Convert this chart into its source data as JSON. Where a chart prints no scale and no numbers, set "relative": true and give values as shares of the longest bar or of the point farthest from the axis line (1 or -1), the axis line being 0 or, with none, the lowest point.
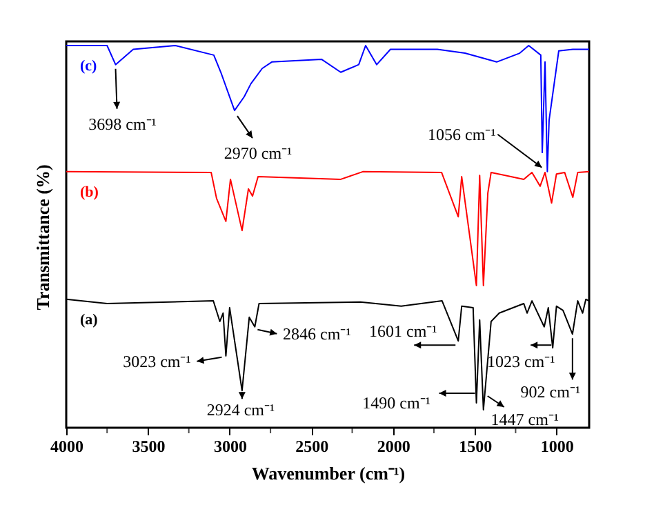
{
  "chart_data": {
    "type": "line",
    "relative": true,
    "xlabel": "Wavenumber (cm⁻¹)",
    "ylabel": "Transmittance (%)",
    "xlim": [
      4000,
      800
    ],
    "xticks": [
      4000,
      {
        "value": 3750,
        "label": null
      },
      3500,
      {
        "value": 3250,
        "label": null
      },
      3000,
      {
        "value": 2750,
        "label": null
      },
      2500,
      {
        "value": 2250,
        "label": null
      },
      2000,
      {
        "value": 1750,
        "label": null
      },
      1500,
      {
        "value": 1250,
        "label": null
      },
      1000
    ],
    "grid": false,
    "series": [
      {
        "name": "(c)",
        "color": "#0000ff",
        "x": [
          4000,
          3750,
          3698,
          3590,
          3333,
          3097,
          3054,
          2970,
          2911,
          2870,
          2801,
          2742,
          2438,
          2320,
          2210,
          2168,
          2100,
          2016,
          1957,
          1729,
          1560,
          1366,
          1225,
          1170,
          1096,
          1087,
          1070,
          1056,
          1045,
          986,
          900,
          800
        ],
        "values": [
          1.0,
          1.0,
          0.95,
          0.99,
          1.0,
          0.975,
          0.93,
          0.83,
          0.866,
          0.9,
          0.94,
          0.957,
          0.964,
          0.93,
          0.95,
          1.0,
          0.95,
          0.99,
          0.99,
          0.99,
          0.98,
          0.957,
          0.98,
          1.0,
          0.975,
          0.72,
          0.957,
          0.67,
          0.805,
          0.986,
          0.99,
          0.99
        ]
      },
      {
        "name": "(b)",
        "color": "#ff0000",
        "x": [
          4000,
          3113,
          3080,
          3023,
          2995,
          2924,
          2885,
          2860,
          2826,
          2320,
          2185,
          1703,
          1601,
          1580,
          1490,
          1470,
          1447,
          1420,
          1400,
          1200,
          1150,
          1100,
          1070,
          1030,
          1000,
          950,
          900,
          870,
          800
        ],
        "values": [
          0.67,
          0.668,
          0.6,
          0.54,
          0.65,
          0.516,
          0.625,
          0.606,
          0.657,
          0.65,
          0.67,
          0.668,
          0.552,
          0.657,
          0.372,
          0.66,
          0.372,
          0.614,
          0.668,
          0.65,
          0.668,
          0.632,
          0.668,
          0.588,
          0.664,
          0.668,
          0.603,
          0.668,
          0.67
        ]
      },
      {
        "name": "(a)",
        "color": "#000000",
        "x": [
          4000,
          3750,
          3100,
          3060,
          3040,
          3023,
          3000,
          2924,
          2880,
          2846,
          2820,
          2200,
          1950,
          1700,
          1601,
          1580,
          1510,
          1490,
          1470,
          1447,
          1400,
          1350,
          1200,
          1180,
          1150,
          1075,
          1050,
          1023,
          1000,
          960,
          902,
          870,
          840,
          820,
          800
        ],
        "values": [
          0.336,
          0.325,
          0.332,
          0.278,
          0.3,
          0.188,
          0.314,
          0.097,
          0.289,
          0.264,
          0.325,
          0.329,
          0.318,
          0.332,
          0.227,
          0.318,
          0.314,
          0.065,
          0.282,
          0.047,
          0.278,
          0.3,
          0.325,
          0.3,
          0.332,
          0.264,
          0.314,
          0.209,
          0.318,
          0.307,
          0.245,
          0.332,
          0.3,
          0.336,
          0.332
        ]
      }
    ],
    "annotations": [
      {
        "text": "3698 cm⁻¹",
        "x": 3698,
        "y": 0.95
      },
      {
        "text": "2970 cm⁻¹",
        "x": 2970,
        "y": 0.83
      },
      {
        "text": "1056 cm⁻¹",
        "x": 1056,
        "y": 0.67
      },
      {
        "text": "3023 cm⁻¹",
        "x": 3023,
        "y": 0.188
      },
      {
        "text": "2924 cm⁻¹",
        "x": 2924,
        "y": 0.097
      },
      {
        "text": "2846 cm⁻¹",
        "x": 2846,
        "y": 0.264
      },
      {
        "text": "1601 cm⁻¹",
        "x": 1601,
        "y": 0.227
      },
      {
        "text": "1490 cm⁻¹",
        "x": 1490,
        "y": 0.065
      },
      {
        "text": "1447 cm⁻¹",
        "x": 1447,
        "y": 0.047
      },
      {
        "text": "1023 cm⁻¹",
        "x": 1023,
        "y": 0.209
      },
      {
        "text": "902 cm⁻¹",
        "x": 902,
        "y": 0.245
      }
    ]
  }
}
